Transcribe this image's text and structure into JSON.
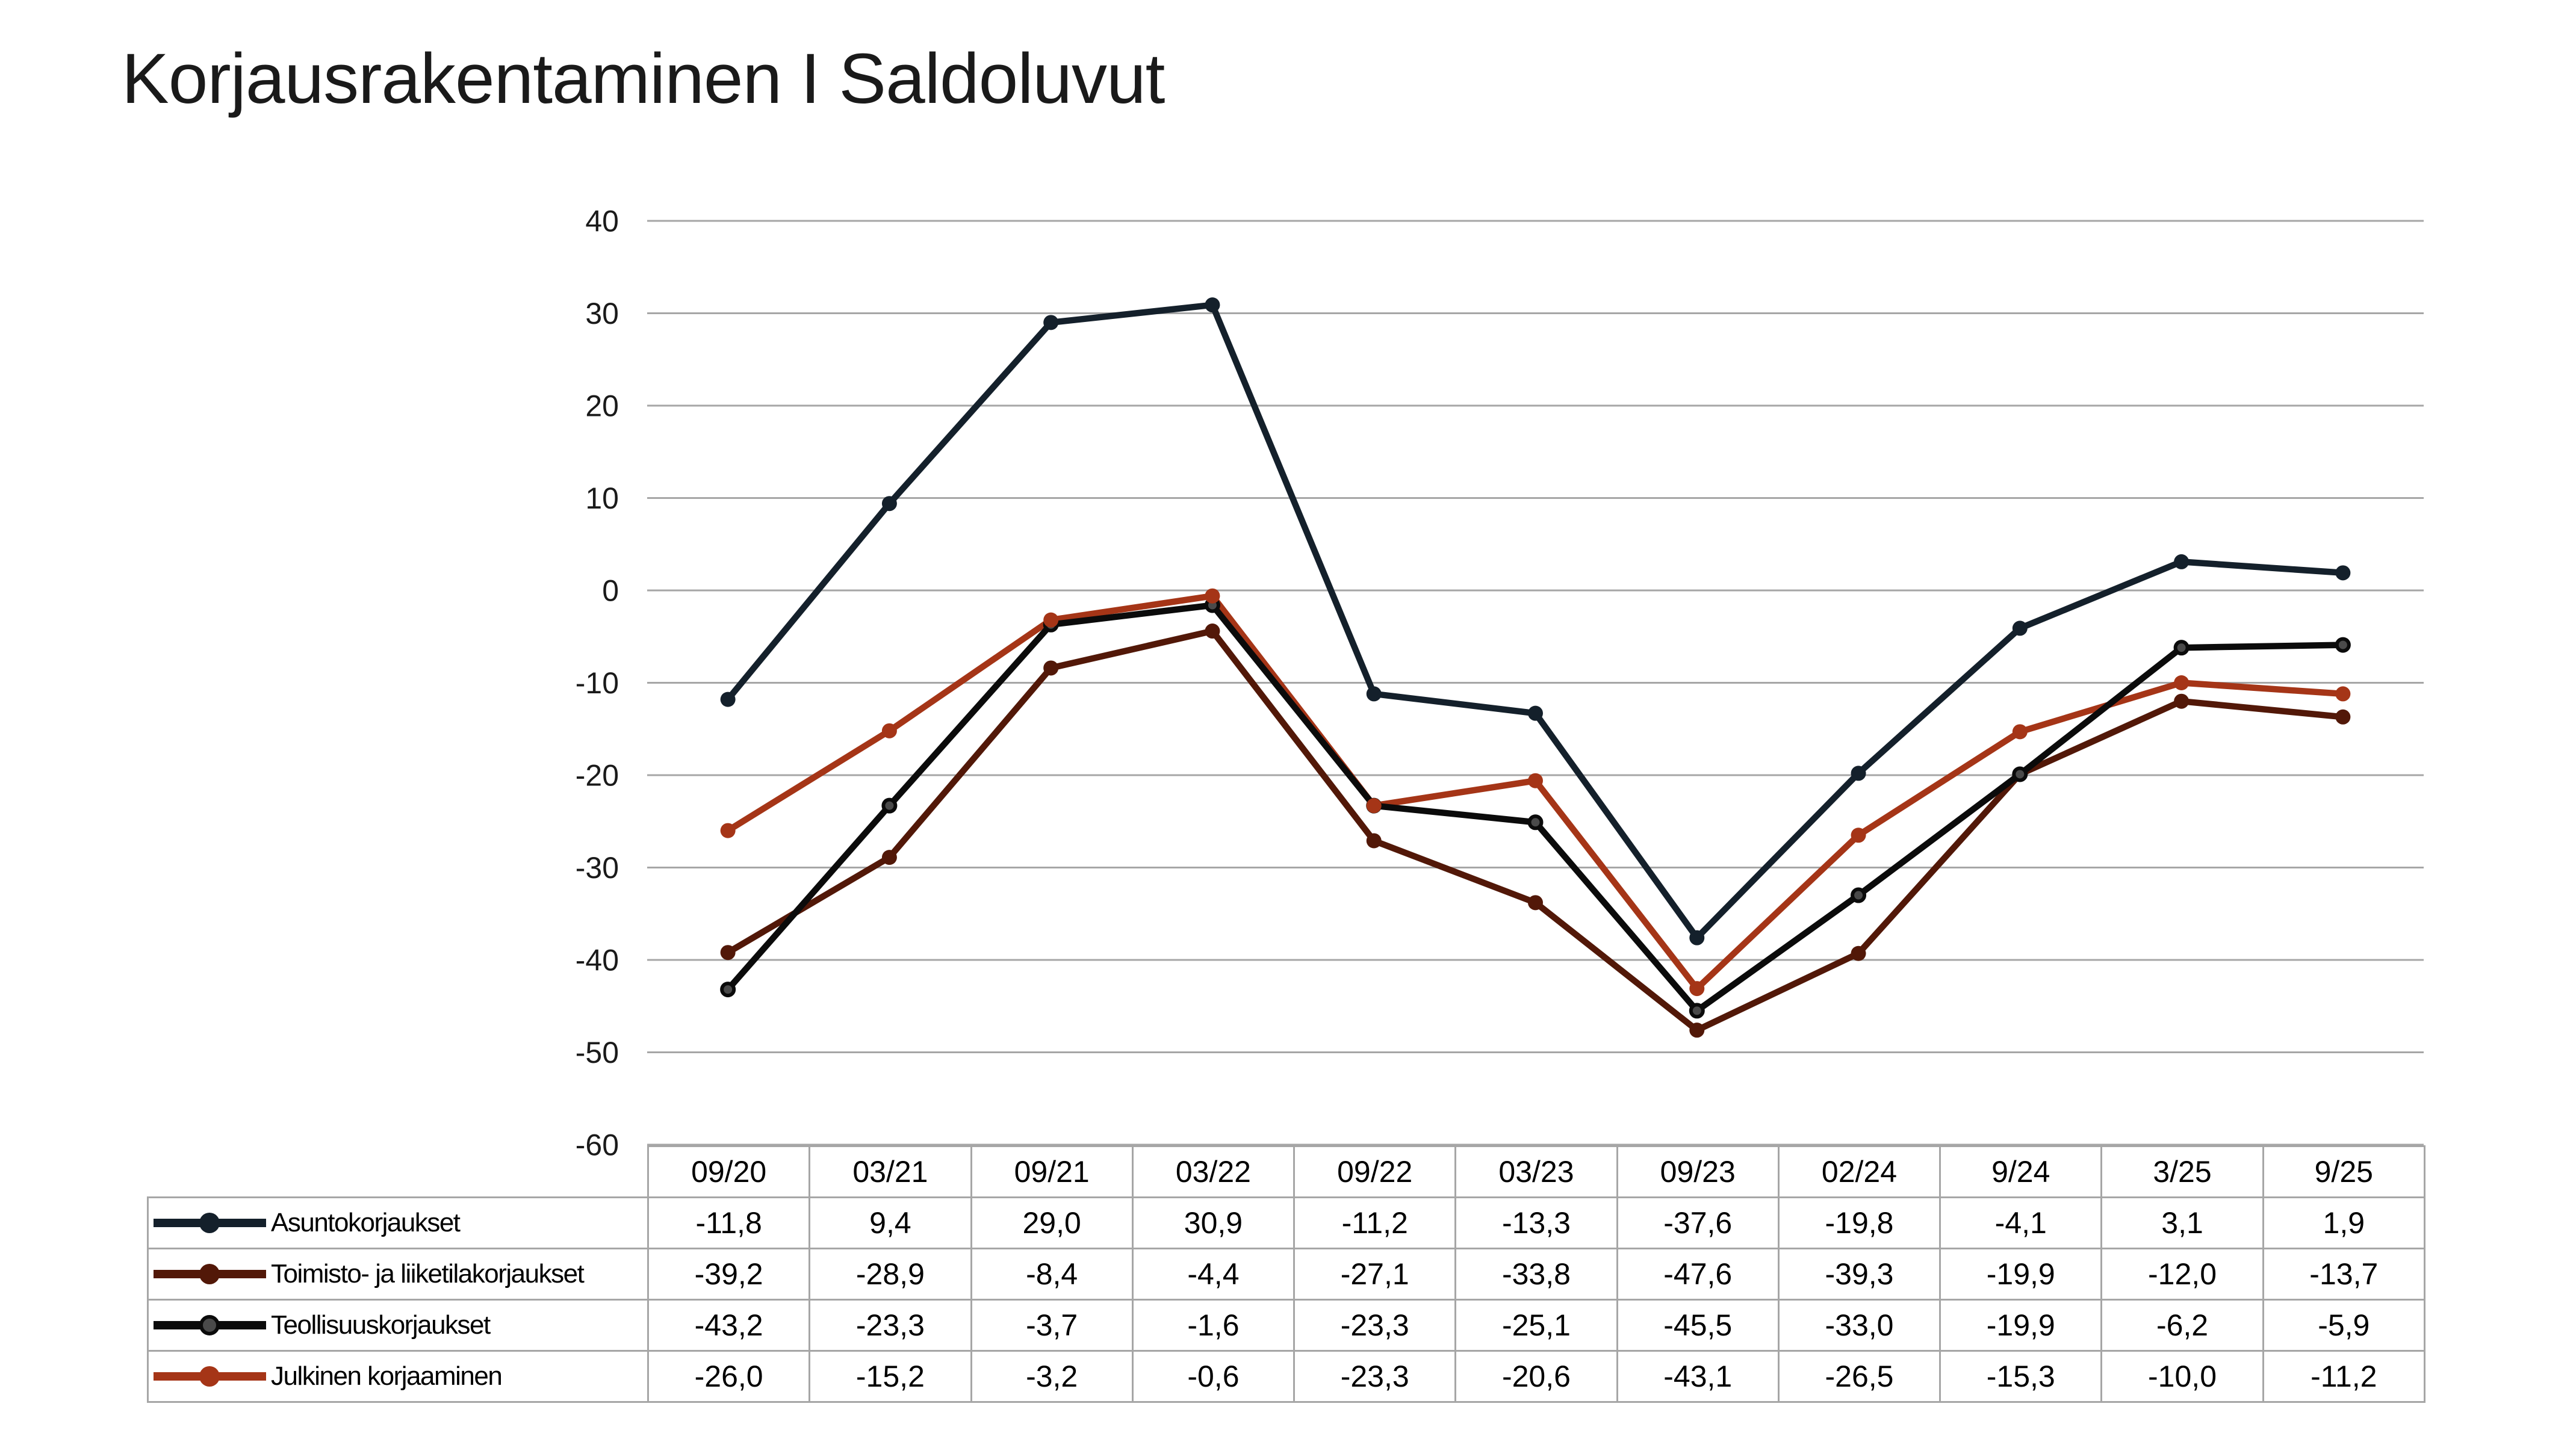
{
  "page": {
    "title": "Korjausrakentaminen I Saldoluvut",
    "background_color": "#FFFFFF",
    "title_color": "#1A1A1A"
  },
  "chart_data": {
    "type": "line",
    "title": "Korjausrakentaminen I Saldoluvut",
    "categories": [
      "09/20",
      "03/21",
      "09/21",
      "03/22",
      "09/22",
      "03/23",
      "09/23",
      "02/24",
      "9/24",
      "3/25",
      "9/25"
    ],
    "series": [
      {
        "name": "Asuntokorjaukset",
        "line_color": "#14202B",
        "marker_color": "#14202B",
        "values": [
          -11.8,
          9.4,
          29.0,
          30.9,
          -11.2,
          -13.3,
          -37.6,
          -19.8,
          -4.1,
          3.1,
          1.9
        ]
      },
      {
        "name": "Toimisto- ja liiketilakorjaukset",
        "line_color": "#521808",
        "marker_color": "#521808",
        "values": [
          -39.2,
          -28.9,
          -8.4,
          -4.4,
          -27.1,
          -33.8,
          -47.6,
          -39.3,
          -19.9,
          -12.0,
          -13.7
        ]
      },
      {
        "name": "Teollisuuskorjaukset",
        "line_color": "#0B0B0B",
        "marker_color": "#4A4A4A",
        "values": [
          -43.2,
          -23.3,
          -3.7,
          -1.6,
          -23.3,
          -25.1,
          -45.5,
          -33.0,
          -19.9,
          -6.2,
          -5.9
        ]
      },
      {
        "name": "Julkinen korjaaminen",
        "line_color": "#A53517",
        "marker_color": "#A53517",
        "values": [
          -26.0,
          -15.2,
          -3.2,
          -0.6,
          -23.3,
          -20.6,
          -43.1,
          -26.5,
          -15.3,
          -10.0,
          -11.2
        ]
      }
    ],
    "ylim": [
      -60,
      40
    ],
    "ytick_step": 10,
    "yticks": [
      40,
      30,
      20,
      10,
      0,
      -10,
      -20,
      -30,
      -40,
      -50,
      -60
    ],
    "grid": "horizontal-only",
    "gridline_color": "#A6A6A6",
    "table_border_color": "#A6A6A6",
    "axis_label_color": "#1A1A1A",
    "legend_position": "table-left-column",
    "number_format": "one-decimal-comma"
  }
}
